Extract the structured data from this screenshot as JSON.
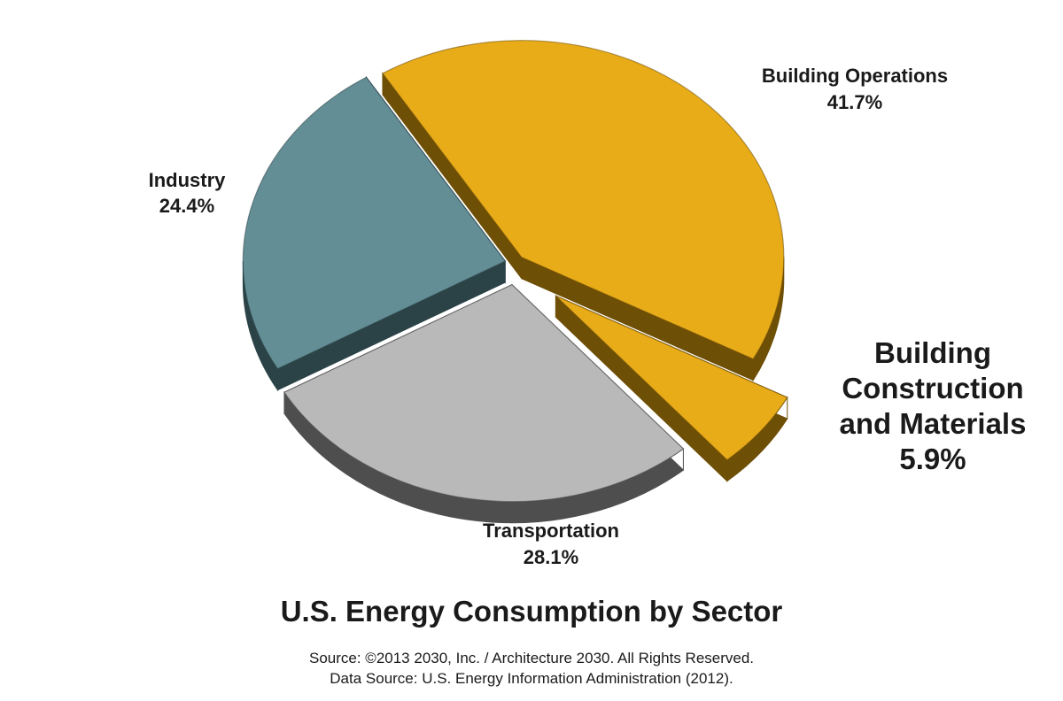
{
  "chart_data": {
    "type": "pie",
    "title": "U.S. Energy Consumption by Sector",
    "slices": [
      {
        "label": "Building Operations",
        "value": 41.7,
        "value_label": "41.7%",
        "color": "#E9AC19",
        "side_color": "#6E4F06"
      },
      {
        "label": "Building Construction and Materials",
        "label_lines": [
          "Building",
          "Construction",
          "and Materials"
        ],
        "value": 5.9,
        "value_label": "5.9%",
        "color": "#E9AC19",
        "side_color": "#6E4F06",
        "highlight": true
      },
      {
        "label": "Transportation",
        "value": 28.1,
        "value_label": "28.1%",
        "color": "#B9B9B9",
        "side_color": "#4E4E4E"
      },
      {
        "label": "Industry",
        "value": 24.4,
        "value_label": "24.4%",
        "color": "#638E95",
        "side_color": "#2B4347"
      }
    ]
  },
  "source": {
    "line1": "Source: ©2013 2030, Inc. / Architecture 2030. All Rights Reserved.",
    "line2": "Data Source: U.S. Energy Information Administration (2012)."
  }
}
